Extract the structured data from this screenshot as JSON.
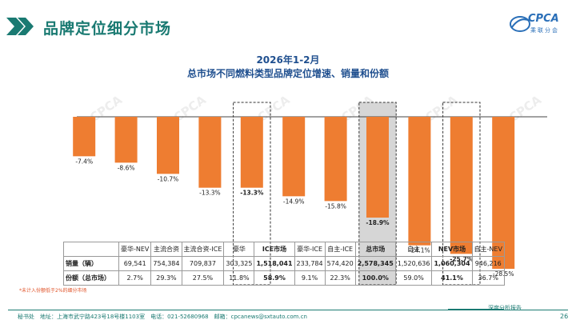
{
  "header": {
    "title": "品牌定位细分市场",
    "logo_text": "CPCA",
    "logo_sub": "乘联分会"
  },
  "chart_data": {
    "type": "bar",
    "title": "2026年1-2月",
    "subtitle": "总市场不同燃料类型品牌定位增速、销量和份额",
    "categories": [
      "豪华-NEV",
      "主流合资",
      "主流合资-ICE",
      "豪华",
      "ICE市场",
      "豪华-ICE",
      "自主-ICE",
      "总市场",
      "自主",
      "NEV市场",
      "自主-NEV"
    ],
    "values": [
      -7.4,
      -8.6,
      -10.7,
      -13.3,
      -13.3,
      -14.9,
      -15.8,
      -18.9,
      -24.1,
      -25.7,
      -28.5
    ],
    "value_labels": [
      "-7.4%",
      "-8.6%",
      "-10.7%",
      "-13.3%",
      "-13.3%",
      "-14.9%",
      "-15.8%",
      "-18.9%",
      "-24.1%",
      "-25.7%",
      "-28.5%"
    ],
    "highlighted": [
      "ICE市场",
      "总市场",
      "NEV市场"
    ],
    "ylim": [
      -30,
      0
    ],
    "bar_color": "#ee7d31",
    "total_bg_color": "#d6d6d6",
    "watermark": "CPCA"
  },
  "table": {
    "row_headers": [
      "销量（辆）",
      "份额（总市场）"
    ],
    "rows": [
      [
        "69,541",
        "754,384",
        "709,837",
        "303,325",
        "1,518,041",
        "233,784",
        "574,420",
        "2,578,345",
        "1,520,636",
        "1,060,304",
        "946,216"
      ],
      [
        "2.7%",
        "29.3%",
        "27.5%",
        "11.8%",
        "58.9%",
        "9.1%",
        "22.3%",
        "100.0%",
        "59.0%",
        "41.1%",
        "36.7%"
      ]
    ]
  },
  "footnote": "*未计入份额低于2%的细分市场",
  "footer": {
    "contact": "秘书处　地址：上海市武宁路423号18号楼1103室　电话：021-52680968　邮箱：cpcanews@sxtauto.com.cn",
    "report": "深度分析报告",
    "page": "26"
  },
  "colors": {
    "accent": "#1a7a72",
    "title_blue": "#1f4f8f",
    "bar": "#ee7d31"
  }
}
